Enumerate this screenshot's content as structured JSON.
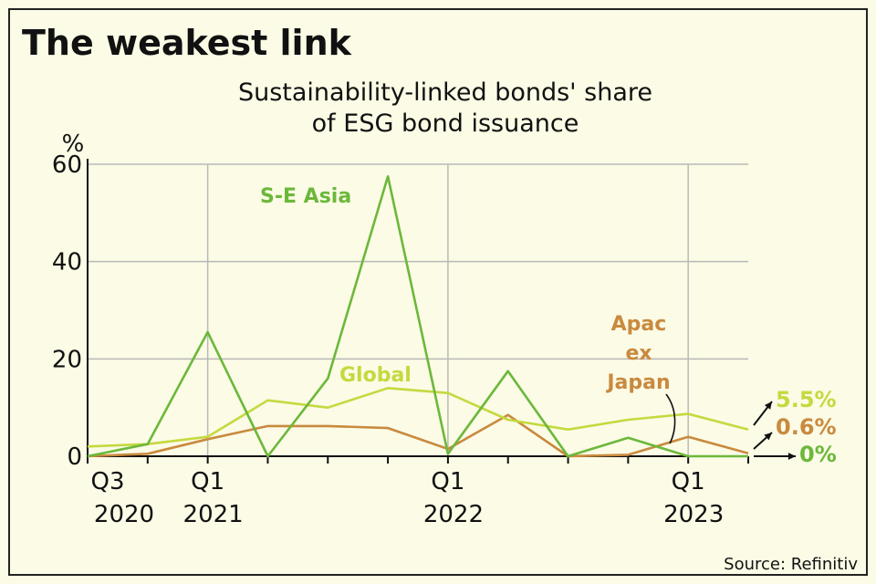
{
  "chart_data": {
    "type": "line",
    "title": "The weakest link",
    "subtitle_lines": [
      "Sustainability-linked bonds' share",
      "of ESG bond issuance"
    ],
    "ylabel": "%",
    "ylim": [
      0,
      60
    ],
    "yticks": [
      0,
      20,
      40,
      60
    ],
    "x": [
      "Q3 2020",
      "Q4 2020",
      "Q1 2021",
      "Q2 2021",
      "Q3 2021",
      "Q4 2021",
      "Q1 2022",
      "Q2 2022",
      "Q3 2022",
      "Q4 2022",
      "Q1 2023",
      "Q2 2023"
    ],
    "xtick_labels": [
      {
        "index": 0,
        "line1": "Q3",
        "line2": "2020"
      },
      {
        "index": 2,
        "line1": "Q1",
        "line2": "2021"
      },
      {
        "index": 6,
        "line1": "Q1",
        "line2": "2022"
      },
      {
        "index": 10,
        "line1": "Q1",
        "line2": "2023"
      }
    ],
    "grid": true,
    "series": [
      {
        "name": "S-E Asia",
        "color": "#6cb83a",
        "values": [
          0,
          2.5,
          25.5,
          0,
          16,
          57.5,
          0.5,
          17.5,
          0,
          3.8,
          0,
          0
        ]
      },
      {
        "name": "Global",
        "color": "#c5d93f",
        "values": [
          2,
          2.5,
          4,
          11.5,
          10,
          14,
          13,
          7.5,
          5.5,
          7.5,
          8.7,
          5.5
        ]
      },
      {
        "name": "Apac ex Japan",
        "color": "#c98a3e",
        "values": [
          0,
          0.5,
          3.5,
          6.2,
          6.2,
          5.8,
          1.5,
          8.5,
          0,
          0.3,
          4,
          0.6
        ]
      }
    ],
    "annotations": [
      {
        "series": "S-E Asia",
        "lines": [
          "S-E Asia"
        ]
      },
      {
        "series": "Global",
        "lines": [
          "Global"
        ]
      },
      {
        "series": "Apac ex Japan",
        "lines": [
          "Apac",
          "ex",
          "Japan"
        ]
      }
    ],
    "end_labels": [
      {
        "series": "Global",
        "text": "5.5%"
      },
      {
        "series": "Apac ex Japan",
        "text": "0.6%"
      },
      {
        "series": "S-E Asia",
        "text": "0%"
      }
    ],
    "source": "Source: Refinitiv"
  }
}
